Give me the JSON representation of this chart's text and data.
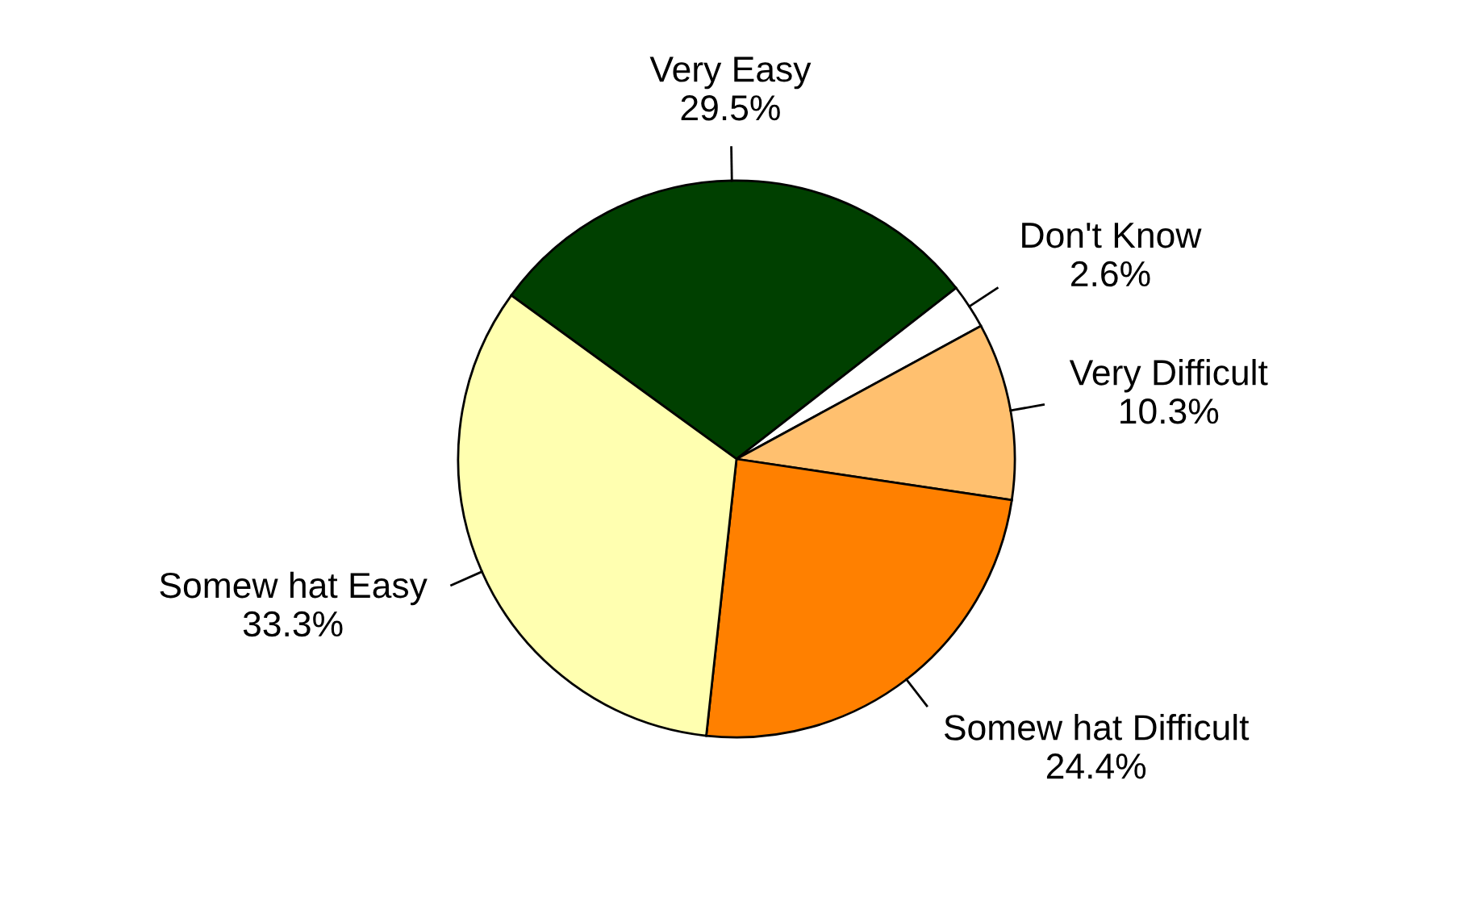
{
  "chart_data": {
    "type": "pie",
    "categories": [
      "Very Easy",
      "Don't Know",
      "Very Difficult",
      "Somew hat Difficult",
      "Somew hat Easy"
    ],
    "values": [
      29.5,
      2.6,
      10.3,
      24.4,
      33.3
    ],
    "value_labels": [
      "29.5%",
      "2.6%",
      "10.3%",
      "24.4%",
      "33.3%"
    ],
    "colors": [
      "#004000",
      "#ffffff",
      "#ffc06f",
      "#ff8000",
      "#ffffb0"
    ]
  }
}
